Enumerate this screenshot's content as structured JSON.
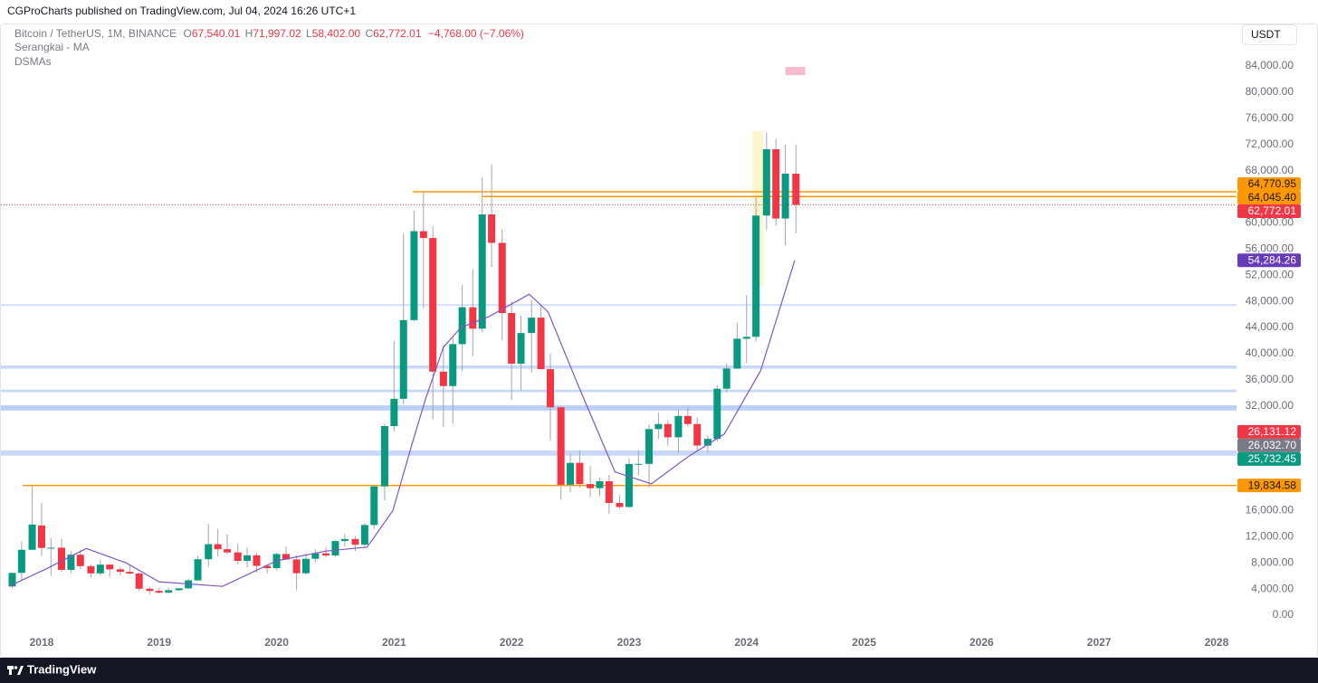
{
  "header": {
    "publisher": "CGProCharts published on TradingView.com, Jul 04, 2024 16:26 UTC+1",
    "footer": "TradingView",
    "currency": "USDT"
  },
  "legend": {
    "symbol": "Bitcoin / TetherUS, 1M, BINANCE",
    "ohlc": [
      {
        "key": "O",
        "value": "67,540.01"
      },
      {
        "key": "H",
        "value": "71,997.02"
      },
      {
        "key": "L",
        "value": "58,402.00"
      },
      {
        "key": "C",
        "value": "62,772.01"
      }
    ],
    "change": "−4,768.00 (−7.06%)",
    "indicator": "Serangkai - MA"
  },
  "chart_data": {
    "type": "candlestick",
    "up_color": "#089981",
    "down_color": "#f23645",
    "wick_color": "#a3a6af",
    "x": [
      2017.75,
      2017.83,
      2017.92,
      2018.0,
      2018.08,
      2018.17,
      2018.25,
      2018.33,
      2018.42,
      2018.5,
      2018.58,
      2018.67,
      2018.75,
      2018.83,
      2018.92,
      2019.0,
      2019.08,
      2019.17,
      2019.25,
      2019.33,
      2019.42,
      2019.5,
      2019.58,
      2019.67,
      2019.75,
      2019.83,
      2019.92,
      2020.0,
      2020.08,
      2020.17,
      2020.25,
      2020.33,
      2020.42,
      2020.5,
      2020.58,
      2020.67,
      2020.75,
      2020.83,
      2020.92,
      2021.0,
      2021.08,
      2021.17,
      2021.25,
      2021.33,
      2021.42,
      2021.5,
      2021.58,
      2021.67,
      2021.75,
      2021.83,
      2021.92,
      2022.0,
      2022.08,
      2022.17,
      2022.25,
      2022.33,
      2022.42,
      2022.5,
      2022.58,
      2022.67,
      2022.75,
      2022.83,
      2022.92,
      2023.0,
      2023.08,
      2023.17,
      2023.25,
      2023.33,
      2023.42,
      2023.5,
      2023.58,
      2023.67,
      2023.75,
      2023.83,
      2023.92,
      2024.0,
      2024.08,
      2024.17,
      2024.25,
      2024.33,
      2024.42
    ],
    "open": [
      4390,
      6463,
      10000,
      13716,
      10285,
      10325,
      6922,
      9246,
      7494,
      6391,
      7735,
      7011,
      6626,
      6370,
      4041,
      3702,
      3434,
      3817,
      4103,
      5321,
      8555,
      10855,
      10085,
      9590,
      8290,
      9150,
      7540,
      7195,
      9350,
      8523,
      6410,
      8620,
      9448,
      9138,
      11335,
      11649,
      10776,
      13791,
      19695,
      28923,
      33092,
      45134,
      58740,
      57697,
      37253,
      35045,
      41461,
      47100,
      43820,
      61300,
      56950,
      46216,
      38466,
      43160,
      45510,
      37630,
      31801,
      19942,
      23296,
      20048,
      19423,
      20490,
      17165,
      16542,
      23125,
      23141,
      28465,
      29233,
      27210,
      30472,
      29232,
      25940,
      26963,
      34639,
      37723,
      42284,
      42580,
      61130,
      71280,
      60672,
      67540.01
    ],
    "high": [
      6470,
      11300,
      19798,
      17176,
      11786,
      11700,
      9759,
      10020,
      7786,
      8507,
      7770,
      7410,
      7680,
      6555,
      4312,
      4140,
      4198,
      4120,
      5600,
      9075,
      13970,
      13200,
      12325,
      10905,
      10370,
      9510,
      7750,
      9578,
      10500,
      9188,
      9460,
      10067,
      10380,
      11444,
      12468,
      12050,
      14100,
      19863,
      29300,
      41950,
      58352,
      61844,
      64854,
      59500,
      41330,
      42448,
      50500,
      52920,
      67000,
      69000,
      59053,
      47990,
      45821,
      48189,
      47444,
      40023,
      31986,
      24668,
      25211,
      22800,
      21085,
      21480,
      18387,
      23960,
      25250,
      29184,
      31000,
      29820,
      31431,
      31804,
      30244,
      27483,
      35198,
      38450,
      44700,
      48969,
      63913,
      73777,
      72797,
      71979,
      71997.02
    ],
    "low": [
      4110,
      5380,
      10400,
      9035,
      6000,
      6600,
      6430,
      7032,
      5750,
      6070,
      5880,
      6100,
      6200,
      3652,
      3156,
      3349,
      3373,
      3690,
      4000,
      5300,
      7440,
      9010,
      9320,
      7710,
      7300,
      6515,
      6430,
      6871,
      8450,
      3782,
      6150,
      8117,
      8833,
      8893,
      10518,
      9825,
      10371,
      13195,
      17572,
      28130,
      32296,
      44950,
      46930,
      30000,
      28805,
      29278,
      37332,
      39600,
      43283,
      53256,
      42000,
      32917,
      34322,
      37155,
      37578,
      26700,
      17622,
      18782,
      19520,
      18125,
      18190,
      15476,
      16256,
      16500,
      21351,
      19549,
      26942,
      25811,
      24800,
      28861,
      25166,
      24901,
      26538,
      34097,
      37629,
      38555,
      41884,
      59005,
      59600,
      56552,
      58402
    ],
    "close": [
      6463,
      10000,
      13860,
      10285,
      10326,
      6923,
      9246,
      7494,
      6391,
      7730,
      7012,
      6626,
      6371,
      4041,
      3702,
      3434,
      3817,
      4103,
      5321,
      8555,
      10855,
      10085,
      9590,
      8290,
      9150,
      7540,
      7195,
      9350,
      8523,
      6410,
      8620,
      9448,
      9138,
      11335,
      11649,
      10776,
      13791,
      19695,
      28923,
      33092,
      45135,
      58740,
      57694,
      37253,
      35045,
      41461,
      47100,
      43824,
      61300,
      56950,
      46216,
      38466,
      43160,
      45510,
      37630,
      31801,
      19942,
      23293,
      20050,
      19423,
      20491,
      17164,
      16542,
      23125,
      23141,
      28465,
      29233,
      27210,
      30472,
      29232,
      25940,
      26963,
      34639,
      37723,
      42284,
      42580,
      61130,
      71280,
      60672,
      67540.01,
      62772.01
    ],
    "lines": [
      {
        "name": "DSMAs",
        "color": "#7e57c2",
        "x": [
          2017.72,
          2018.03,
          2018.38,
          2018.72,
          2019.0,
          2019.54,
          2020.0,
          2020.42,
          2020.77,
          2020.99,
          2021.15,
          2021.27,
          2021.42,
          2021.57,
          2021.81,
          2022.15,
          2022.31,
          2022.58,
          2022.88,
          2023.19,
          2023.5,
          2023.81,
          2024.12,
          2024.41
        ],
        "values": [
          4400,
          7000,
          10200,
          8000,
          5100,
          4400,
          8300,
          9800,
          10400,
          16000,
          26000,
          33200,
          41000,
          44000,
          45700,
          49100,
          46400,
          34600,
          21900,
          20100,
          24200,
          27700,
          37400,
          54284.26
        ]
      }
    ],
    "levels": [
      {
        "value": 64770.95,
        "from": 2021.16,
        "color": "#ff9800"
      },
      {
        "value": 64045.4,
        "from": 2021.75,
        "color": "#ff9800"
      },
      {
        "value": 19834.58,
        "from": 2017.84,
        "color": "#ff9800"
      }
    ],
    "zones": [
      {
        "low": 47300,
        "high": 47600,
        "color": "#d6e2f8"
      },
      {
        "low": 37700,
        "high": 38200,
        "color": "#c9d8f6"
      },
      {
        "low": 34100,
        "high": 34500,
        "color": "#c9d8f6"
      },
      {
        "low": 31300,
        "high": 32100,
        "color": "#bccff4"
      },
      {
        "low": 24400,
        "high": 25200,
        "color": "#c9d8f6"
      }
    ],
    "highlights": [
      {
        "x0": 2024.05,
        "x1": 2024.14,
        "low": 50400,
        "high": 74000,
        "color": "#fff5cc"
      },
      {
        "x0": 2024.33,
        "x1": 2024.5,
        "low": 82620,
        "high": 83860,
        "color": "#f8bbd0"
      }
    ],
    "price_labels": [
      {
        "value": 64770.95,
        "label": "64,770.95",
        "color": "#ff9800"
      },
      {
        "value": 64045.4,
        "label": "64,045.40",
        "color": "#ff9800"
      },
      {
        "value": 62772.01,
        "label": "62,772.01",
        "color": "#f23645"
      },
      {
        "value": 54284.26,
        "label": "54,284.26",
        "color": "#673ab7"
      },
      {
        "value": 26131.12,
        "label": "26,131.12",
        "color": "#f23645"
      },
      {
        "value": 26032.7,
        "label": "26,032.70",
        "color": "#787b86"
      },
      {
        "value": 25732.45,
        "label": "25,732.45",
        "color": "#089981"
      },
      {
        "value": 19834.58,
        "label": "19,834.58",
        "color": "#ff9800"
      }
    ],
    "xlim": [
      2017.646,
      2028.17
    ],
    "xticks": [
      2018,
      2019,
      2020,
      2021,
      2022,
      2023,
      2024,
      2025,
      2026,
      2027,
      2028
    ],
    "ylim": [
      -2353,
      90366
    ],
    "yticks": [
      {
        "value": 0,
        "label": "0.00"
      },
      {
        "value": 4000,
        "label": "4,000.00"
      },
      {
        "value": 8000,
        "label": "8,000.00"
      },
      {
        "value": 12000,
        "label": "12,000.00"
      },
      {
        "value": 16000,
        "label": "16,000.00"
      },
      {
        "value": 20000,
        "label": "20,000.00"
      },
      {
        "value": 24000,
        "label": "24,000.00"
      },
      {
        "value": 28000,
        "label": "28,000.00"
      },
      {
        "value": 32000,
        "label": "32,000.00"
      },
      {
        "value": 36000,
        "label": "36,000.00"
      },
      {
        "value": 40000,
        "label": "40,000.00"
      },
      {
        "value": 44000,
        "label": "44,000.00"
      },
      {
        "value": 48000,
        "label": "48,000.00"
      },
      {
        "value": 52000,
        "label": "52,000.00"
      },
      {
        "value": 56000,
        "label": "56,000.00"
      },
      {
        "value": 60000,
        "label": "60,000.00"
      },
      {
        "value": 64000,
        "label": "64,000.00"
      },
      {
        "value": 68000,
        "label": "68,000.00"
      },
      {
        "value": 72000,
        "label": "72,000.00"
      },
      {
        "value": 76000,
        "label": "76,000.00"
      },
      {
        "value": 80000,
        "label": "80,000.00"
      },
      {
        "value": 84000,
        "label": "84,000.00"
      }
    ],
    "grid": false
  }
}
